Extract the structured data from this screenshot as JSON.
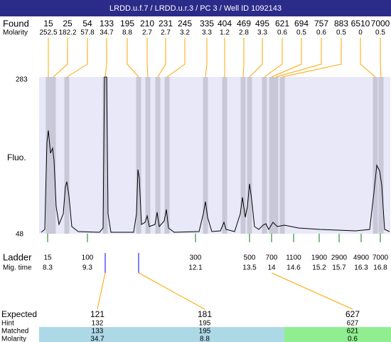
{
  "header": {
    "title": "LRDD.u.f.7 / LRDD.u.r.3 / PC 3 / Well ID 1092143"
  },
  "found": {
    "label": "Found",
    "molarity_label": "Molarity",
    "peaks": [
      {
        "size": 15,
        "molarity": 252.5
      },
      {
        "size": 25,
        "molarity": 182.2
      },
      {
        "size": 54,
        "molarity": 57.8
      },
      {
        "size": 133,
        "molarity": 34.7
      },
      {
        "size": 195,
        "molarity": 8.8
      },
      {
        "size": 210,
        "molarity": 2.7
      },
      {
        "size": 231,
        "molarity": 2.7
      },
      {
        "size": 245,
        "molarity": 3.2
      },
      {
        "size": 335,
        "molarity": 3.3
      },
      {
        "size": 404,
        "molarity": 1.2
      },
      {
        "size": 469,
        "molarity": 2.8
      },
      {
        "size": 495,
        "molarity": 3.3
      },
      {
        "size": 621,
        "molarity": 0.6
      },
      {
        "size": 694,
        "molarity": 0.5
      },
      {
        "size": 757,
        "molarity": 0.6
      },
      {
        "size": 883,
        "molarity": 0.5
      },
      {
        "size": 6510,
        "molarity": 0
      },
      {
        "size": 7000,
        "molarity": 0.5
      }
    ]
  },
  "trace": {
    "y_max_label": "283",
    "y_min_label": "48",
    "y_label": "Fluo."
  },
  "ladder": {
    "label": "Ladder",
    "time_label": "Mig. time",
    "peaks": [
      {
        "size": 15,
        "time": 8.3
      },
      {
        "size": 100,
        "time": 9.3
      },
      {
        "size": 300,
        "time": 12.1
      },
      {
        "size": 500,
        "time": 13.5
      },
      {
        "size": 700,
        "time": 14
      },
      {
        "size": 1100,
        "time": 14.6
      },
      {
        "size": 1900,
        "time": 15.2
      },
      {
        "size": 2900,
        "time": 15.7
      },
      {
        "size": 4900,
        "time": 16.3
      },
      {
        "size": 7000,
        "time": 16.8
      }
    ]
  },
  "expected": {
    "row_labels": [
      "Expected",
      "Hint",
      "Matched",
      "Molarity"
    ],
    "columns": [
      {
        "expected": 121,
        "hint": 132,
        "matched": 133,
        "molarity": 34.7
      },
      {
        "expected": 181,
        "hint": 195,
        "matched": 195,
        "molarity": 8.8
      },
      {
        "expected": 627,
        "hint": 627,
        "matched": 621,
        "molarity": 0.6
      }
    ]
  }
}
